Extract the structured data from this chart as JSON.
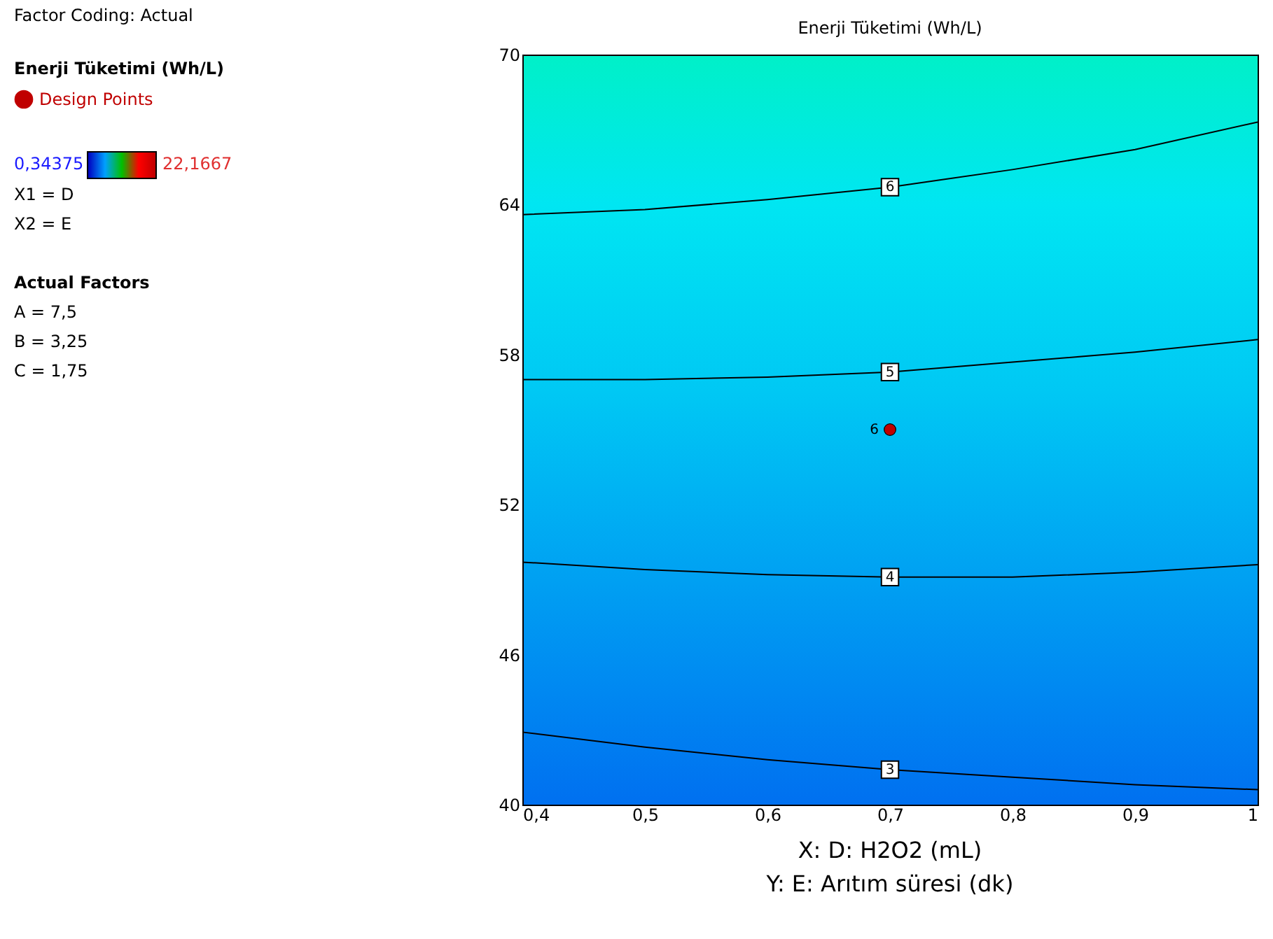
{
  "chart_data": {
    "type": "line",
    "title": "Enerji Tüketimi (Wh/L)",
    "xlabel": "X: D: H2O2 (mL)",
    "legend_title": "Enerji Tüketimi (Wh/L)",
    "legend": "top left",
    "grid": false,
    "xlim": [
      0.4,
      1
    ],
    "xticks": [
      {
        "value": 0.4,
        "label": "0,4"
      },
      {
        "value": 0.5,
        "label": "0,5"
      },
      {
        "value": 0.6,
        "label": "0,6"
      },
      {
        "value": 0.7,
        "label": "0,7"
      },
      {
        "value": 0.8,
        "label": "0,8"
      },
      {
        "value": 0.9,
        "label": "0,9"
      },
      1
    ],
    "ylim": [
      40,
      70
    ],
    "yticks": [
      40,
      46,
      52,
      58,
      64,
      70
    ],
    "series": [
      {
        "name": "3",
        "color": "#000000",
        "x": [
          0.4,
          0.5,
          0.6,
          0.7,
          0.8,
          0.9,
          1.0
        ],
        "values": [
          42.9,
          42.3,
          41.8,
          41.4,
          41.1,
          40.8,
          40.6
        ]
      },
      {
        "name": "4",
        "color": "#000000",
        "x": [
          0.4,
          0.5,
          0.6,
          0.7,
          0.8,
          0.9,
          1.0
        ],
        "values": [
          49.7,
          49.4,
          49.2,
          49.1,
          49.1,
          49.3,
          49.6
        ]
      },
      {
        "name": "5",
        "color": "#000000",
        "x": [
          0.4,
          0.5,
          0.6,
          0.7,
          0.8,
          0.9,
          1.0
        ],
        "values": [
          57.0,
          57.0,
          57.1,
          57.3,
          57.7,
          58.1,
          58.6
        ]
      },
      {
        "name": "6",
        "color": "#000000",
        "x": [
          0.4,
          0.5,
          0.6,
          0.7,
          0.8,
          0.9,
          1.0
        ],
        "values": [
          63.6,
          63.8,
          64.2,
          64.7,
          65.4,
          66.2,
          67.3
        ]
      },
      {
        "name": "Design Points",
        "type": "scatter",
        "color": "#c00000",
        "x": [
          0.7
        ],
        "values": [
          55.0
        ]
      }
    ],
    "annotations": [
      "Factor Coding: Actual",
      "0,34375",
      "22,1667",
      "X1 = D",
      "X2 = E",
      "Actual Factors",
      "A = 7,5",
      "B = 3,25",
      "C = 1,75",
      "Y: E: Arıtım süresi (dk)",
      {
        "text": "6",
        "x": 0.7,
        "y": 55.0
      }
    ]
  }
}
